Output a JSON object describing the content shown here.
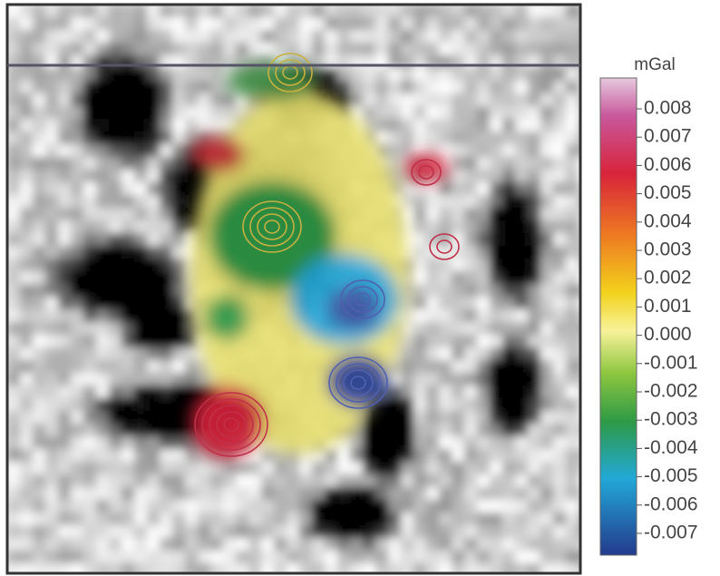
{
  "colorbar": {
    "unit": "mGal",
    "ticks": [
      0.008,
      0.007,
      0.006,
      0.005,
      0.004,
      0.003,
      0.002,
      0.001,
      {
        "value": 0,
        "label": "0.000"
      },
      -0.001,
      -0.002,
      -0.003,
      -0.004,
      -0.005,
      -0.006,
      -0.007
    ]
  }
}
